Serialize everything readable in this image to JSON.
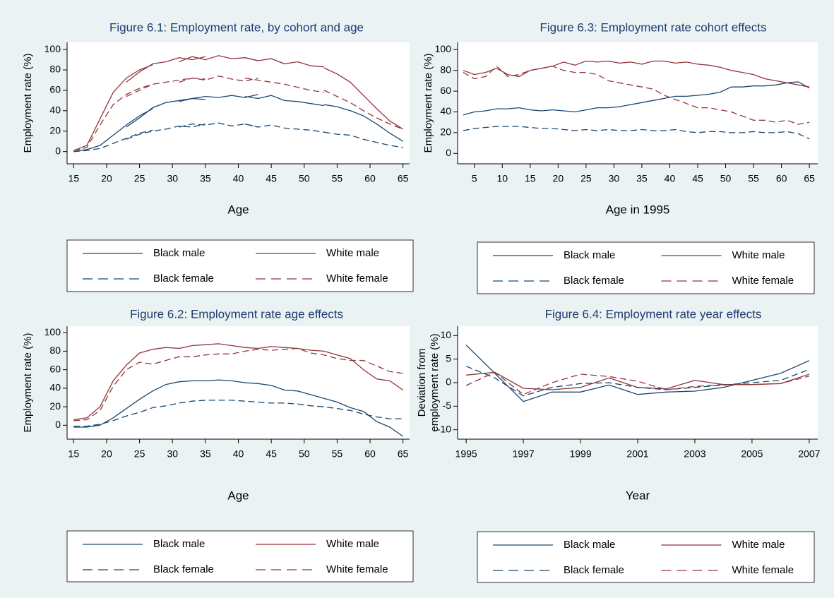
{
  "chart_data": [
    {
      "type": "line",
      "title": "Figure 6.1: Employment rate, by cohort and age",
      "xlabel": "Age",
      "ylabel": "Employment rate (%)",
      "xlim": [
        14,
        66
      ],
      "ylim": [
        -12,
        107
      ],
      "xticks": [
        15,
        20,
        25,
        30,
        35,
        40,
        45,
        50,
        55,
        60,
        65
      ],
      "yticks": [
        0,
        20,
        40,
        60,
        80,
        100
      ],
      "series": [
        {
          "name": "Black male",
          "color": "#1a476f",
          "dash": false,
          "cohorts": [
            {
              "x": [
                15,
                17,
                19,
                21,
                23,
                25,
                27
              ],
              "values": [
                0,
                2,
                6,
                16,
                26,
                35,
                42
              ]
            },
            {
              "x": [
                23,
                25,
                27,
                29,
                31,
                33,
                35
              ],
              "values": [
                24,
                33,
                43,
                48,
                50,
                52,
                51
              ]
            },
            {
              "x": [
                31,
                33,
                35,
                37,
                39,
                41,
                43
              ],
              "values": [
                49,
                52,
                54,
                53,
                55,
                53,
                56
              ]
            },
            {
              "x": [
                41,
                43,
                45,
                47,
                49,
                51,
                53
              ],
              "values": [
                54,
                52,
                55,
                50,
                49,
                47,
                45
              ]
            },
            {
              "x": [
                53,
                55,
                57,
                59,
                61,
                63,
                65
              ],
              "values": [
                46,
                44,
                40,
                35,
                27,
                18,
                10
              ]
            }
          ]
        },
        {
          "name": "White male",
          "color": "#90353b",
          "dash": false,
          "cohorts": [
            {
              "x": [
                15,
                17,
                19,
                21,
                23,
                25,
                27
              ],
              "values": [
                1,
                6,
                32,
                58,
                72,
                80,
                85
              ]
            },
            {
              "x": [
                23,
                25,
                27,
                29,
                31,
                33,
                35
              ],
              "values": [
                68,
                78,
                86,
                88,
                92,
                90,
                93
              ]
            },
            {
              "x": [
                31,
                33,
                35,
                37,
                39,
                41,
                43
              ],
              "values": [
                88,
                93,
                90,
                94,
                91,
                92,
                89
              ]
            },
            {
              "x": [
                41,
                43,
                45,
                47,
                49,
                51,
                53
              ],
              "values": [
                92,
                89,
                91,
                86,
                88,
                84,
                83
              ]
            },
            {
              "x": [
                53,
                55,
                57,
                59,
                61,
                63,
                65
              ],
              "values": [
                82,
                76,
                68,
                55,
                42,
                30,
                22
              ]
            }
          ]
        },
        {
          "name": "Black female",
          "color": "#1a476f",
          "dash": true,
          "cohorts": [
            {
              "x": [
                15,
                17,
                19,
                21,
                23,
                25,
                27
              ],
              "values": [
                0,
                1,
                3,
                8,
                13,
                18,
                21
              ]
            },
            {
              "x": [
                23,
                25,
                27,
                29,
                31,
                33,
                35
              ],
              "values": [
                12,
                17,
                20,
                22,
                25,
                24,
                27
              ]
            },
            {
              "x": [
                31,
                33,
                35,
                37,
                39,
                41,
                43
              ],
              "values": [
                24,
                27,
                26,
                28,
                25,
                27,
                24
              ]
            },
            {
              "x": [
                41,
                43,
                45,
                47,
                49,
                51,
                53
              ],
              "values": [
                27,
                24,
                26,
                23,
                22,
                21,
                19
              ]
            },
            {
              "x": [
                53,
                55,
                57,
                59,
                61,
                63,
                65
              ],
              "values": [
                19,
                17,
                16,
                12,
                9,
                6,
                4
              ]
            }
          ]
        },
        {
          "name": "White female",
          "color": "#90353b",
          "dash": true,
          "cohorts": [
            {
              "x": [
                15,
                17,
                19,
                21,
                23,
                25,
                27
              ],
              "values": [
                1,
                4,
                26,
                46,
                56,
                62,
                66
              ]
            },
            {
              "x": [
                23,
                25,
                27,
                29,
                31,
                33,
                35
              ],
              "values": [
                54,
                60,
                66,
                68,
                70,
                72,
                71
              ]
            },
            {
              "x": [
                31,
                33,
                35,
                37,
                39,
                41,
                43
              ],
              "values": [
                68,
                72,
                70,
                74,
                71,
                69,
                72
              ]
            },
            {
              "x": [
                41,
                43,
                45,
                47,
                49,
                51,
                53
              ],
              "values": [
                72,
                70,
                68,
                66,
                63,
                60,
                58
              ]
            },
            {
              "x": [
                53,
                55,
                57,
                59,
                61,
                63,
                65
              ],
              "values": [
                60,
                54,
                48,
                40,
                33,
                27,
                22
              ]
            }
          ]
        }
      ]
    },
    {
      "type": "line",
      "title": "Figure 6.3: Employment rate cohort effects",
      "xlabel": "Age in 1995",
      "ylabel": "Employment rate (%)",
      "xlim": [
        2,
        66.5
      ],
      "ylim": [
        -10,
        107
      ],
      "xticks": [
        5,
        10,
        15,
        20,
        25,
        30,
        35,
        40,
        45,
        50,
        55,
        60,
        65
      ],
      "yticks": [
        0,
        20,
        40,
        60,
        80,
        100
      ],
      "x": [
        3,
        5,
        7,
        9,
        11,
        13,
        15,
        17,
        19,
        21,
        23,
        25,
        27,
        29,
        31,
        33,
        35,
        37,
        39,
        41,
        43,
        45,
        47,
        49,
        51,
        53,
        55,
        57,
        59,
        61,
        63,
        65
      ],
      "series": [
        {
          "name": "Black male",
          "color": "#1a476f",
          "dash": false,
          "values": [
            37,
            40,
            41,
            43,
            43,
            44,
            42,
            41,
            42,
            41,
            40,
            42,
            44,
            44,
            45,
            47,
            49,
            51,
            53,
            55,
            55,
            56,
            57,
            59,
            64,
            64,
            65,
            65,
            66,
            68,
            69,
            63
          ]
        },
        {
          "name": "White male",
          "color": "#90353b",
          "dash": false,
          "values": [
            80,
            76,
            78,
            82,
            76,
            74,
            80,
            82,
            84,
            88,
            85,
            89,
            88,
            89,
            87,
            88,
            86,
            89,
            89,
            87,
            88,
            86,
            85,
            83,
            80,
            78,
            76,
            72,
            70,
            68,
            66,
            64
          ]
        },
        {
          "name": "Black female",
          "color": "#1a476f",
          "dash": true,
          "values": [
            22,
            24,
            25,
            26,
            26,
            26,
            25,
            24,
            24,
            23,
            22,
            23,
            22,
            23,
            22,
            22,
            23,
            22,
            22,
            23,
            21,
            20,
            21,
            21,
            20,
            20,
            21,
            20,
            20,
            21,
            19,
            14
          ]
        },
        {
          "name": "White female",
          "color": "#90353b",
          "dash": true,
          "values": [
            78,
            72,
            74,
            84,
            74,
            76,
            80,
            82,
            84,
            80,
            78,
            78,
            76,
            70,
            68,
            66,
            64,
            62,
            56,
            52,
            48,
            44,
            44,
            42,
            40,
            36,
            32,
            32,
            30,
            32,
            28,
            30
          ]
        }
      ]
    },
    {
      "type": "line",
      "title": "Figure 6.2: Employment rate age effects",
      "xlabel": "Age",
      "ylabel": "Employment rate (%)",
      "xlim": [
        14,
        66
      ],
      "ylim": [
        -15,
        107
      ],
      "xticks": [
        15,
        20,
        25,
        30,
        35,
        40,
        45,
        50,
        55,
        60,
        65
      ],
      "yticks": [
        0,
        20,
        40,
        60,
        80,
        100
      ],
      "x": [
        15,
        17,
        19,
        21,
        23,
        25,
        27,
        29,
        31,
        33,
        35,
        37,
        39,
        41,
        43,
        45,
        47,
        49,
        51,
        53,
        55,
        57,
        59,
        61,
        63,
        65
      ],
      "series": [
        {
          "name": "Black male",
          "color": "#1a476f",
          "dash": false,
          "values": [
            -2,
            -2,
            0,
            8,
            18,
            28,
            37,
            44,
            47,
            48,
            48,
            49,
            48,
            46,
            45,
            43,
            38,
            37,
            33,
            29,
            25,
            19,
            15,
            4,
            -2,
            -12
          ]
        },
        {
          "name": "White male",
          "color": "#90353b",
          "dash": false,
          "values": [
            6,
            8,
            20,
            48,
            65,
            78,
            82,
            84,
            83,
            86,
            87,
            88,
            86,
            84,
            83,
            85,
            84,
            83,
            81,
            80,
            76,
            72,
            60,
            50,
            48,
            38
          ]
        },
        {
          "name": "Black female",
          "color": "#1a476f",
          "dash": true,
          "values": [
            -1,
            -1,
            1,
            5,
            10,
            14,
            19,
            21,
            24,
            26,
            27,
            27,
            27,
            26,
            25,
            24,
            24,
            23,
            21,
            20,
            18,
            16,
            12,
            9,
            7,
            7
          ]
        },
        {
          "name": "White female",
          "color": "#90353b",
          "dash": true,
          "values": [
            5,
            6,
            16,
            42,
            60,
            68,
            66,
            70,
            74,
            74,
            76,
            77,
            77,
            80,
            82,
            81,
            82,
            83,
            78,
            76,
            72,
            70,
            70,
            64,
            58,
            56
          ]
        }
      ]
    },
    {
      "type": "line",
      "title": "Figure 6.4: Employment rate year effects",
      "xlabel": "Year",
      "ylabel": [
        "Deviation from",
        "employment rate (%)"
      ],
      "xlim": [
        1994.7,
        2007.3
      ],
      "ylim": [
        -12,
        12
      ],
      "xticks": [
        1995,
        1997,
        1999,
        2001,
        2003,
        2005,
        2007
      ],
      "yticks": [
        -10,
        -5,
        0,
        5,
        10
      ],
      "x": [
        1995,
        1996,
        1997,
        1998,
        1999,
        2000,
        2001,
        2002,
        2003,
        2004,
        2005,
        2006,
        2007
      ],
      "series": [
        {
          "name": "Black male",
          "color": "#1a476f",
          "dash": false,
          "values": [
            8,
            2,
            -4,
            -2,
            -2,
            -0.5,
            -2.5,
            -2,
            -1.8,
            -1,
            0.5,
            2,
            4.7
          ]
        },
        {
          "name": "White male",
          "color": "#90353b",
          "dash": false,
          "values": [
            1.6,
            2.2,
            -1.2,
            -1.5,
            -1,
            1,
            -1,
            -1.3,
            0.5,
            -0.4,
            -0.4,
            -0.2,
            1.8
          ]
        },
        {
          "name": "Black female",
          "color": "#1a476f",
          "dash": true,
          "values": [
            3.5,
            1,
            -2.8,
            -1,
            -0.2,
            0,
            -1,
            -1.5,
            -1,
            -0.5,
            0,
            0.5,
            2.8
          ]
        },
        {
          "name": "White female",
          "color": "#90353b",
          "dash": true,
          "values": [
            -0.6,
            2.2,
            -2.5,
            0,
            1.8,
            1.3,
            0.3,
            -1.5,
            -0.8,
            -0.4,
            -0.4,
            -0.2,
            1.4
          ]
        }
      ]
    }
  ]
}
